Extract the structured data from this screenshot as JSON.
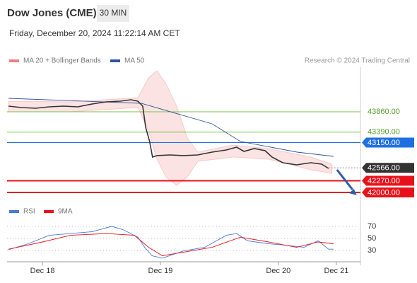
{
  "header": {
    "title": "Dow Jones (CME)",
    "interval": "30 MIN",
    "timestamp": "Friday, December 20, 2024 11:22:14 AM CET",
    "credit": "Research © 2024 Trading Central"
  },
  "chart_data": [
    {
      "type": "line",
      "xlim": [
        -7.2,
        64.7
      ],
      "ylim": [
        41788,
        44887
      ],
      "xticks": [
        {
          "value": 0,
          "label": "Dec 18"
        },
        {
          "value": 24,
          "label": "Dec 19"
        },
        {
          "value": 48,
          "label": "Dec 20"
        },
        {
          "value": 59.8,
          "label": "Dec 21"
        }
      ],
      "price": {
        "color": "#333333",
        "x": [
          -6.9,
          -4.3,
          -1.4,
          1.4,
          4.3,
          7.2,
          10.1,
          12.9,
          15.8,
          18.0,
          19.4,
          20.4,
          21.0,
          21.8,
          22.4,
          23.3,
          25.9,
          28.7,
          31.6,
          34.5,
          37.4,
          39.5,
          41.0,
          43.1,
          45.3,
          46.7,
          48.9,
          51.7,
          54.6,
          56.8,
          58.2
        ],
        "values": [
          43990,
          43958,
          43941,
          43974,
          43990,
          43974,
          44039,
          44088,
          44104,
          44137,
          44104,
          43990,
          43501,
          43175,
          42816,
          42849,
          42865,
          42849,
          42865,
          42930,
          42979,
          43044,
          42946,
          43012,
          42963,
          42816,
          42685,
          42636,
          42685,
          42653,
          42555
        ]
      },
      "bands": {
        "name": "MA 20 + Bollinger Bands",
        "color": "#f08080",
        "x": [
          -6.9,
          5.7,
          19.4,
          21.6,
          23.3,
          25.1,
          27.3,
          29.5,
          31.6,
          38.8,
          46.0,
          54.6,
          58.9
        ],
        "upper": [
          44104,
          44088,
          44186,
          44643,
          44806,
          44512,
          43990,
          43256,
          42930,
          43093,
          43011,
          42816,
          42653
        ],
        "lower": [
          43860,
          43860,
          43958,
          43419,
          42767,
          42360,
          42163,
          42360,
          42718,
          42816,
          42767,
          42522,
          42440
        ]
      },
      "series": [
        {
          "name": "MA 50",
          "color": "#2f5597",
          "x": [
            -6.9,
            20.1,
            34.5,
            40.3,
            51.8,
            59.2
          ],
          "values": [
            44170,
            44055,
            43582,
            43175,
            42930,
            42832
          ]
        }
      ],
      "levels": [
        {
          "value": 43860,
          "label": "43860.00",
          "color": "#7cc04a"
        },
        {
          "value": 43390,
          "label": "43390.00",
          "color": "#7cc04a"
        },
        {
          "value": 43150,
          "label": "43150.00",
          "color": "#1f6fe0"
        },
        {
          "value": 42566,
          "label": "42566.00",
          "color": "#333333"
        },
        {
          "value": 42270,
          "label": "42270.00",
          "color": "#e8111a"
        },
        {
          "value": 42000,
          "label": "42000.00",
          "color": "#e8111a"
        }
      ]
    },
    {
      "type": "line",
      "xlim": [
        -7.2,
        64.7
      ],
      "ylim": [
        11,
        84
      ],
      "yticks": [
        30,
        50,
        70
      ],
      "series": [
        {
          "name": "RSI",
          "color": "#4a78d8",
          "x": [
            -6.9,
            -2.9,
            1.4,
            5.7,
            10.1,
            14.1,
            16.5,
            19.4,
            20.8,
            22.3,
            24.4,
            28.7,
            33.0,
            37.4,
            39.5,
            41.7,
            46.0,
            48.9,
            53.2,
            56.1,
            58.2,
            59.2
          ],
          "values": [
            31,
            41,
            55,
            58,
            61,
            70,
            64,
            52,
            35,
            21,
            17,
            29,
            35,
            55,
            58,
            46,
            41,
            39,
            35,
            46,
            32,
            32
          ]
        },
        {
          "name": "9MA",
          "color": "#e8111a",
          "x": [
            -6.9,
            0,
            5.7,
            12.9,
            18.7,
            21.6,
            24.4,
            28.7,
            34.5,
            40.3,
            46.0,
            51.7,
            56.1,
            59.2
          ],
          "values": [
            32,
            44,
            55,
            58,
            55,
            35,
            21,
            27,
            35,
            52,
            44,
            35,
            44,
            41
          ]
        }
      ]
    }
  ]
}
